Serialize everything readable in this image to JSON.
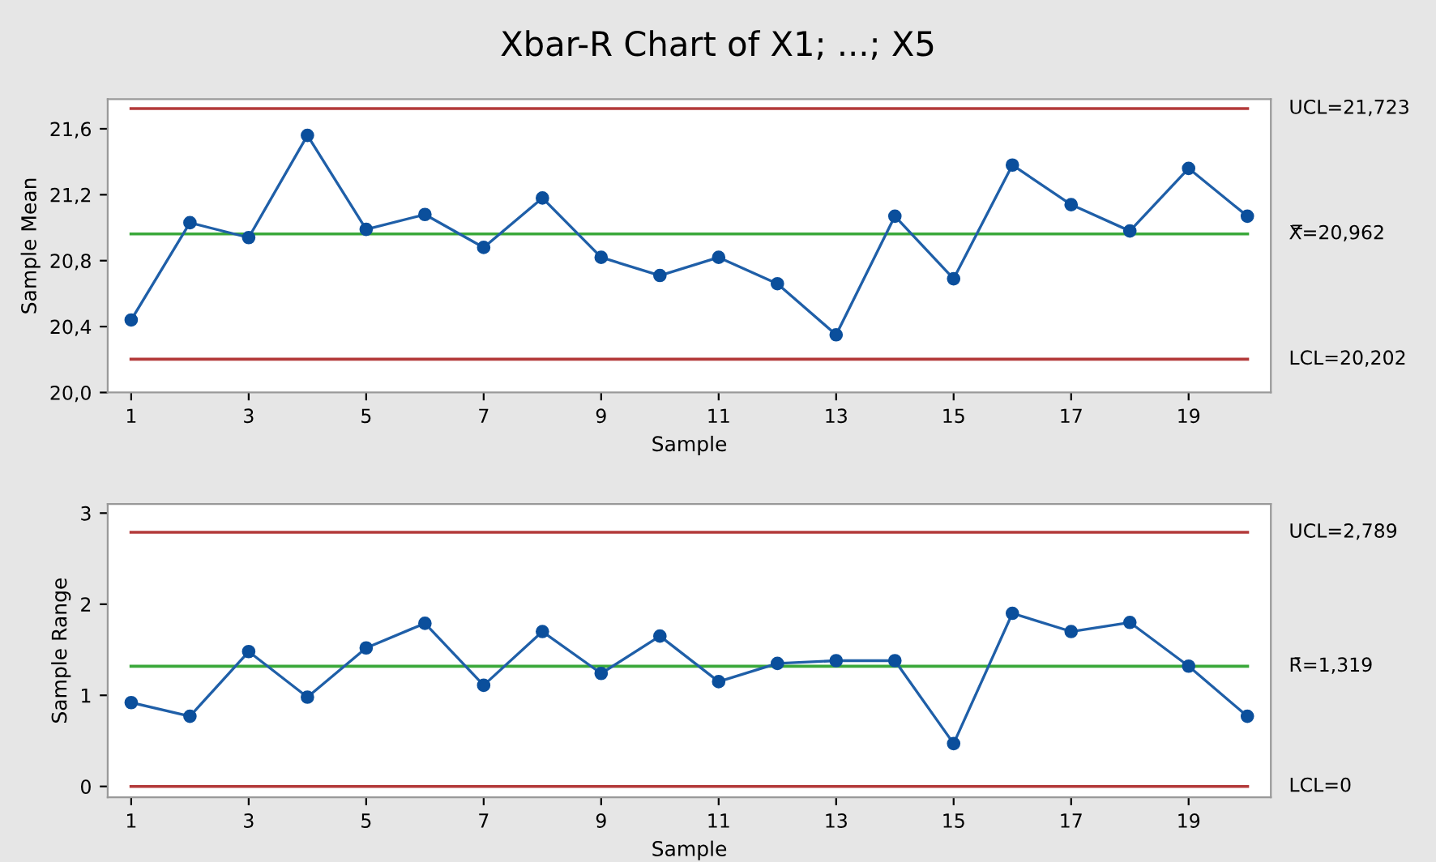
{
  "chart_data": [
    {
      "type": "line",
      "title": "Xbar-R Chart of X1; ...; X5",
      "xlabel": "Sample",
      "ylabel": "Sample Mean",
      "x": [
        1,
        2,
        3,
        4,
        5,
        6,
        7,
        8,
        9,
        10,
        11,
        12,
        13,
        14,
        15,
        16,
        17,
        18,
        19,
        20
      ],
      "series": [
        {
          "color": "#1f5fa8",
          "values": [
            20.44,
            21.03,
            20.94,
            21.56,
            20.99,
            21.08,
            20.88,
            21.18,
            20.82,
            20.71,
            20.82,
            20.66,
            20.35,
            21.07,
            20.69,
            21.38,
            21.14,
            20.98,
            21.36,
            21.07
          ]
        }
      ],
      "marker": "circle",
      "line_style": "solid",
      "grid": false,
      "legend": false,
      "xlim": [
        0.6,
        20.4
      ],
      "ylim": [
        20.0,
        21.78
      ],
      "xticks": [
        1,
        3,
        5,
        7,
        9,
        11,
        13,
        15,
        17,
        19
      ],
      "yticks": [
        {
          "value": 20.0,
          "label": "20,0"
        },
        {
          "value": 20.4,
          "label": "20,4"
        },
        {
          "value": 20.8,
          "label": "20,8"
        },
        {
          "value": 21.2,
          "label": "21,2"
        },
        {
          "value": 21.6,
          "label": "21,6"
        }
      ],
      "ref_lines": [
        {
          "axis": "y",
          "value": 21.723,
          "label": "UCL=21,723",
          "color": "#b33a3a"
        },
        {
          "axis": "y",
          "value": 20.962,
          "label": "X̿=20,962",
          "color": "#3aa83a"
        },
        {
          "axis": "y",
          "value": 20.202,
          "label": "LCL=20,202",
          "color": "#b33a3a"
        }
      ]
    },
    {
      "type": "line",
      "xlabel": "Sample",
      "ylabel": "Sample Range",
      "x": [
        1,
        2,
        3,
        4,
        5,
        6,
        7,
        8,
        9,
        10,
        11,
        12,
        13,
        14,
        15,
        16,
        17,
        18,
        19,
        20
      ],
      "series": [
        {
          "color": "#1f5fa8",
          "values": [
            0.92,
            0.77,
            1.48,
            0.98,
            1.52,
            1.79,
            1.11,
            1.7,
            1.24,
            1.65,
            1.15,
            1.35,
            1.38,
            1.38,
            0.47,
            1.9,
            1.7,
            1.8,
            1.32,
            0.77
          ]
        }
      ],
      "marker": "circle",
      "line_style": "solid",
      "grid": false,
      "legend": false,
      "xlim": [
        0.6,
        20.4
      ],
      "ylim": [
        -0.12,
        3.1
      ],
      "xticks": [
        1,
        3,
        5,
        7,
        9,
        11,
        13,
        15,
        17,
        19
      ],
      "yticks": [
        0,
        1,
        2,
        3
      ],
      "ref_lines": [
        {
          "axis": "y",
          "value": 2.789,
          "label": "UCL=2,789",
          "color": "#b33a3a"
        },
        {
          "axis": "y",
          "value": 1.319,
          "label": "R̄=1,319",
          "color": "#3aa83a"
        },
        {
          "axis": "y",
          "value": 0,
          "label": "LCL=0",
          "color": "#b33a3a"
        }
      ]
    }
  ]
}
